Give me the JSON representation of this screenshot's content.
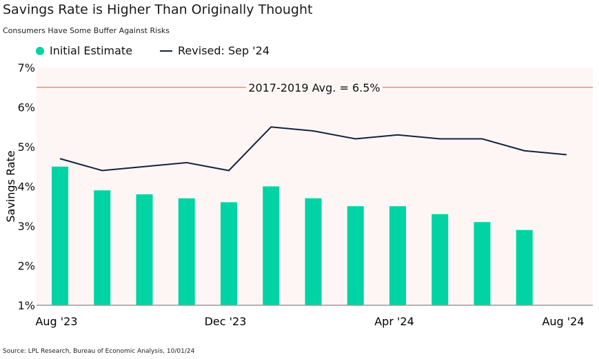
{
  "title": "Savings Rate is Higher Than Originally Thought",
  "subtitle": "Consumers Have Some Buffer Against Risks",
  "source": "Source: LPL Research, Bureau of Economic Analysis, 10/01/24",
  "chart_data": {
    "type": "bar",
    "title": "Savings Rate is Higher Than Originally Thought",
    "ylabel": "Savings Rate",
    "xlabel": "",
    "ylim": [
      1,
      7
    ],
    "yticks": [
      "1%",
      "2%",
      "3%",
      "4%",
      "5%",
      "6%",
      "7%"
    ],
    "categories": [
      "Aug '23",
      "Sep '23",
      "Oct '23",
      "Nov '23",
      "Dec '23",
      "Jan '24",
      "Feb '24",
      "Mar '24",
      "Apr '24",
      "May '24",
      "Jun '24",
      "Jul '24",
      "Aug '24"
    ],
    "xtick_labels": [
      "Aug '23",
      "Dec '23",
      "Apr '24",
      "Aug '24"
    ],
    "legend_position": "top-left",
    "grid": false,
    "series": [
      {
        "name": "Initial Estimate",
        "type": "bar",
        "color": "#00d3a4",
        "values": [
          4.5,
          3.9,
          3.8,
          3.7,
          3.6,
          4.0,
          3.7,
          3.5,
          3.5,
          3.3,
          3.1,
          2.9,
          null
        ]
      },
      {
        "name": "Revised: Sep '24",
        "type": "line",
        "color": "#14213d",
        "values": [
          4.7,
          4.4,
          4.5,
          4.6,
          4.4,
          5.5,
          5.4,
          5.2,
          5.3,
          5.2,
          5.2,
          4.9,
          4.8
        ]
      }
    ],
    "reference_line": {
      "value": 6.5,
      "label": "2017-2019 Avg. = 6.5%",
      "color": "#f07a3c"
    },
    "background_color": "#fdf6f5"
  }
}
